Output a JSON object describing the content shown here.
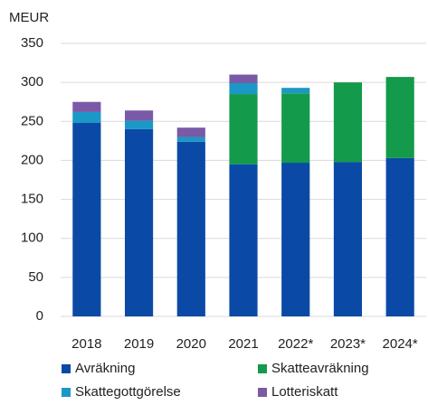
{
  "chart_data": {
    "type": "stacked_bar",
    "y_label": "MEUR",
    "categories": [
      "2018",
      "2019",
      "2020",
      "2021",
      "2022*",
      "2023*",
      "2024*"
    ],
    "series": [
      {
        "name": "Avräkning",
        "color": "#0a4aa6",
        "values": [
          248,
          240,
          224,
          195,
          197,
          198,
          203
        ]
      },
      {
        "name": "Skatteavräkning",
        "color": "#139a4a",
        "values": [
          null,
          null,
          null,
          90,
          89,
          102,
          104
        ]
      },
      {
        "name": "Skattegottgörelse",
        "color": "#1b98c6",
        "values": [
          14,
          11,
          6,
          14,
          7,
          null,
          null
        ]
      },
      {
        "name": "Lotteriskatt",
        "color": "#7a5aa6",
        "values": [
          13,
          13,
          12,
          11,
          null,
          null,
          null
        ]
      }
    ],
    "ylim": [
      0,
      350
    ],
    "yticks": [
      0,
      50,
      100,
      150,
      200,
      250,
      300,
      350
    ],
    "grid": true
  }
}
